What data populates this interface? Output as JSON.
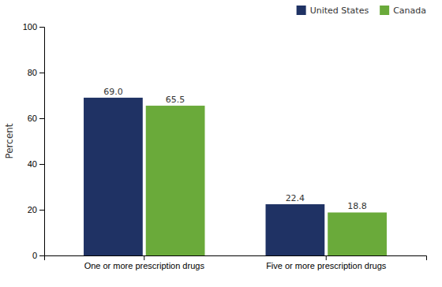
{
  "chart_data": {
    "type": "bar",
    "categories": [
      "One or more prescription drugs",
      "Five or more prescription drugs"
    ],
    "series": [
      {
        "name": "United States",
        "color": "#1f3264",
        "values": [
          69.0,
          22.4
        ],
        "value_labels": [
          "69.0",
          "22.4"
        ]
      },
      {
        "name": "Canada",
        "color": "#6aaa3a",
        "values": [
          65.5,
          18.8
        ],
        "value_labels": [
          "65.5",
          "18.8"
        ]
      }
    ],
    "ylabel": "Percent",
    "ylim": [
      0,
      100
    ],
    "yticks": [
      0,
      20,
      40,
      60,
      80,
      100
    ],
    "grid": false,
    "legend": "upper-right",
    "data_labels": true
  }
}
